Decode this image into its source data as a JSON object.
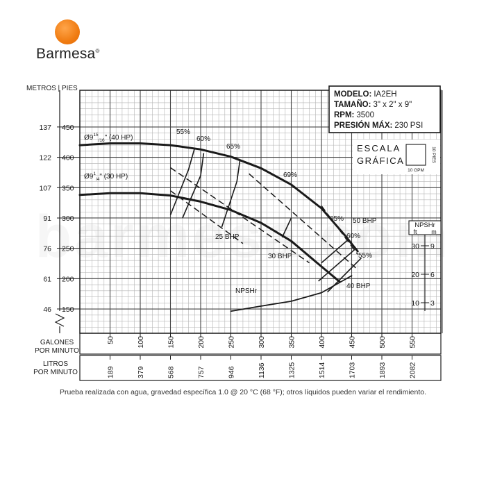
{
  "brand": {
    "name": "Barmesa",
    "mark": "®",
    "sun_color": "#f07c12"
  },
  "watermark": "barmesa.com",
  "info_box": {
    "rows": [
      {
        "label": "MODELO:",
        "value": "IA2EH"
      },
      {
        "label": "TAMAÑO:",
        "value": "3\" x 2\" x 9\""
      },
      {
        "label": "RPM:",
        "value": "3500"
      },
      {
        "label": "PRESIÓN MÁX:",
        "value": "230 PSI"
      }
    ]
  },
  "scale_box": {
    "title_line1": "ESCALA",
    "title_line2": "GRÁFICA",
    "vertical_label": "10 PIES",
    "horizontal_label": "10 GPM"
  },
  "axes": {
    "left_header": "METROS | PIES",
    "head_ticks": [
      {
        "m": "46",
        "ft": "150",
        "value": 150
      },
      {
        "m": "61",
        "ft": "200",
        "value": 200
      },
      {
        "m": "76",
        "ft": "250",
        "value": 250
      },
      {
        "m": "91",
        "ft": "300",
        "value": 300
      },
      {
        "m": "107",
        "ft": "350",
        "value": 350
      },
      {
        "m": "122",
        "ft": "400",
        "value": 400
      },
      {
        "m": "137",
        "ft": "450",
        "value": 450
      }
    ],
    "gpm_label_line1": "GALONES",
    "gpm_label_line2": "POR MINUTO",
    "gpm_ticks": [
      "50",
      "100",
      "150",
      "200",
      "250",
      "300",
      "350",
      "400",
      "450",
      "500",
      "550"
    ],
    "lpm_label_line1": "LITROS",
    "lpm_label_line2": "POR MINUTO",
    "lpm_ticks": [
      "189",
      "379",
      "568",
      "757",
      "946",
      "1136",
      "1325",
      "1514",
      "1703",
      "1893",
      "2082"
    ],
    "npsh_header_line1": "NPSHr",
    "npsh_header_ft": "ft",
    "npsh_header_m": "m",
    "npsh_ticks": [
      {
        "ft": "30",
        "m": "9",
        "value": 30
      },
      {
        "ft": "20",
        "m": "6",
        "value": 20
      },
      {
        "ft": "10",
        "m": "3",
        "value": 10
      }
    ]
  },
  "chart_data": {
    "type": "line",
    "title": "",
    "xlabel": "GALONES POR MINUTO",
    "ylabel": "METROS | PIES",
    "xlim": [
      0,
      600
    ],
    "ylim": [
      110,
      460
    ],
    "grid": true,
    "series": [
      {
        "name": "Ø9 15/16\" (40 HP)",
        "label_main": "Ø9",
        "label_sup": "15",
        "label_sub": "16",
        "label_tail": "\" (40 HP)",
        "x": [
          0,
          50,
          100,
          150,
          200,
          250,
          300,
          350,
          400,
          440,
          460
        ],
        "y": [
          420,
          423,
          423,
          420,
          413,
          401,
          382,
          355,
          316,
          270,
          245
        ]
      },
      {
        "name": "Ø9 1/4\" (30 HP)",
        "label_main": "Ø9",
        "label_sup": "1",
        "label_sub": "4",
        "label_tail": "\" (30 HP)",
        "x": [
          0,
          50,
          100,
          150,
          200,
          250,
          300,
          350,
          400,
          430
        ],
        "y": [
          338,
          341,
          341,
          337,
          327,
          313,
          292,
          262,
          220,
          195
        ]
      },
      {
        "name": "NPSHr",
        "axis": "npsh",
        "x": [
          250,
          300,
          350,
          400,
          450
        ],
        "y": [
          7,
          8.8,
          10.5,
          13.5,
          19.5
        ]
      }
    ],
    "efficiency_lines": [
      {
        "label": "55%",
        "x": [
          150,
          180,
          190
        ],
        "y": [
          305,
          380,
          415
        ]
      },
      {
        "label": "60%",
        "x": [
          170,
          200,
          205
        ],
        "y": [
          300,
          370,
          407
        ]
      },
      {
        "label": "65%",
        "x": [
          235,
          260,
          265
        ],
        "y": [
          285,
          360,
          395
        ]
      },
      {
        "label": "69%",
        "x": [
          335,
          350
        ],
        "y": [
          268,
          300
        ]
      },
      {
        "label": "65%",
        "x": [
          400,
          445
        ],
        "y": [
          226,
          265
        ]
      },
      {
        "label": "60%",
        "x": [
          395,
          455
        ],
        "y": [
          196,
          248
        ]
      },
      {
        "label": "55%",
        "x": [
          410,
          466
        ],
        "y": [
          178,
          234
        ]
      }
    ],
    "power_lines": [
      {
        "label": "25 BHP",
        "x": [
          150,
          270
        ],
        "y": [
          345,
          258
        ]
      },
      {
        "label": "30 BHP",
        "x": [
          150,
          380
        ],
        "y": [
          383,
          226
        ]
      },
      {
        "label": "40 BHP",
        "x": [
          280,
          460
        ],
        "y": [
          373,
          215
        ]
      },
      {
        "label": "50 BHP",
        "x": [
          400,
          460
        ],
        "y": [
          320,
          240
        ]
      }
    ]
  },
  "footnote": "Prueba realizada con agua, gravedad específica 1.0 @ 20 °C (68 °F); otros líquidos pueden variar el rendimiento."
}
